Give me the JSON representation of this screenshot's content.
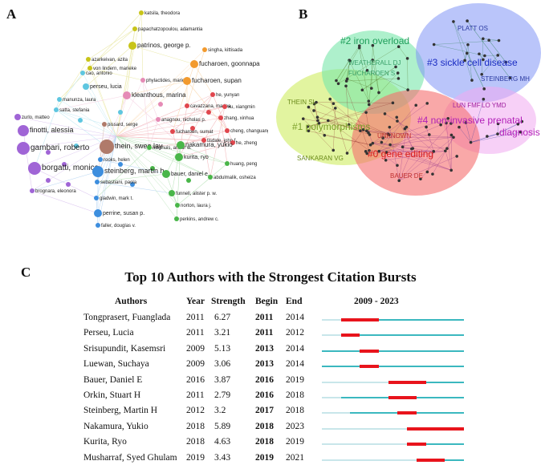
{
  "panels": {
    "a": "A",
    "b": "B",
    "c": "C"
  },
  "panel_a": {
    "labels": [
      "katsila, theodora",
      "papachatzopoulou, adamantia",
      "patrinos, george p.",
      "azarkeivan, azita",
      "von lindern, marieke",
      "singha, kittisada",
      "fucharoen, goonnapa",
      "cao, antonio",
      "phylactides, marios",
      "fucharoen, supan",
      "perseu, lucia",
      "kleanthous, marina",
      "manunza, laura",
      "satta, stefania",
      "he, yunyan",
      "cavazzana, marina",
      "xu, xiangmin",
      "zurlo, matteo",
      "finotti, alessia",
      "pissard, serge",
      "anagnou, nicholas p.",
      "zhang, xinhua",
      "fucharoen, sumat",
      "cheng, changuang",
      "tisdale, john f.",
      "gambari, roberto",
      "he, zheng",
      "thein, swee lay",
      "nienhuis, arthur w.",
      "rooks, helen",
      "kurita, ryo",
      "huang, peng",
      "borgatti, monica",
      "nakamura, yukio",
      "steinberg, martin h.",
      "bauer, daniel e.",
      "abdulmalik, osheiza",
      "sebastiani, paola",
      "brognara, eleonora",
      "funnell, alister p. w.",
      "gladwin, mark t.",
      "norton, laura j.",
      "perrine, susan p.",
      "perkins, andrew c.",
      "faller, douglas v."
    ]
  },
  "panel_b": {
    "clusters": [
      {
        "label": "#0 gene editing",
        "color": "#d81b1b"
      },
      {
        "label": "#1 polymorphisms",
        "color": "#7ca02a"
      },
      {
        "label": "#2 iron overload",
        "color": "#1f9e5a"
      },
      {
        "label": "#3 sickle cell disease",
        "color": "#1a2cc2"
      },
      {
        "label": "#4 non-invasive prenatal",
        "label2": "diagnosis",
        "color": "#b21fb8"
      }
    ],
    "authors": [
      "PLATT OS",
      "STEINBERG MH",
      "WEATHERALL DJ",
      "FUCHAROEN S",
      "THEIN SL",
      "LUN FMF",
      "LO YMD",
      "UNKNOWN",
      "SANKARAN VG",
      "BAUER DE"
    ]
  },
  "citation_bursts": {
    "title": "Top 10 Authors with the Strongest Citation Bursts",
    "headers": {
      "authors": "Authors",
      "year": "Year",
      "strength": "Strength",
      "begin": "Begin",
      "end": "End",
      "timeline": "2009 - 2023"
    },
    "timeline_start": 2009,
    "timeline_end": 2023,
    "rows": [
      {
        "author": "Tongprasert, Fuanglada",
        "year": "2011",
        "strength": "6.27",
        "begin": "2011",
        "end": "2014"
      },
      {
        "author": "Perseu, Lucia",
        "year": "2011",
        "strength": "3.21",
        "begin": "2011",
        "end": "2012"
      },
      {
        "author": "Srisupundit, Kasemsri",
        "year": "2009",
        "strength": "5.13",
        "begin": "2013",
        "end": "2014"
      },
      {
        "author": "Luewan, Suchaya",
        "year": "2009",
        "strength": "3.06",
        "begin": "2013",
        "end": "2014"
      },
      {
        "author": "Bauer, Daniel E",
        "year": "2016",
        "strength": "3.87",
        "begin": "2016",
        "end": "2019"
      },
      {
        "author": "Orkin, Stuart H",
        "year": "2011",
        "strength": "2.79",
        "begin": "2016",
        "end": "2018"
      },
      {
        "author": "Steinberg, Martin H",
        "year": "2012",
        "strength": "3.2",
        "begin": "2017",
        "end": "2018"
      },
      {
        "author": "Nakamura, Yukio",
        "year": "2018",
        "strength": "5.89",
        "begin": "2018",
        "end": "2023"
      },
      {
        "author": "Kurita, Ryo",
        "year": "2018",
        "strength": "4.63",
        "begin": "2018",
        "end": "2019"
      },
      {
        "author": "Musharraf, Syed Ghulam",
        "year": "2019",
        "strength": "3.43",
        "begin": "2019",
        "end": "2021"
      }
    ]
  },
  "colors": {
    "burst": "#e8141c",
    "active": "#3bb8bf",
    "inactive": "#c8e6ea"
  }
}
